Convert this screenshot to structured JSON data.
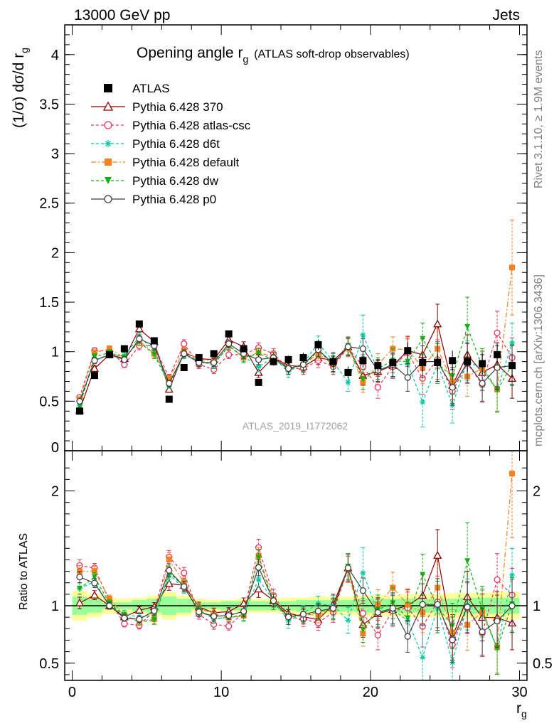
{
  "header": {
    "energy_label": "13000 GeV pp",
    "category_label": "Jets",
    "side_label_top": "Rivet 3.1.10, ≥ 1.9M events",
    "side_label_bottom": "mcplots.cern.ch [arXiv:1306.3436]",
    "analysis_id": "ATLAS_2019_I1772062"
  },
  "chart_data": {
    "type": "scatter",
    "title": "Opening angle r",
    "title_sub": "g",
    "title_suffix": "(ATLAS soft-drop observables)",
    "ylabel": "(1/σ) dσ/d r",
    "ylabel_sub": "g",
    "xlabel": "r",
    "xlabel_sub": "g",
    "ratio_ylabel": "Ratio to ATLAS",
    "xlim": [
      -0.5,
      30.5
    ],
    "ylim": [
      0,
      4.3
    ],
    "ratio_ylim": [
      0.35,
      2.35
    ],
    "x_ticks": [
      0,
      10,
      20,
      30
    ],
    "y_ticks": [
      0.5,
      1,
      1.5,
      2,
      2.5,
      3,
      3.5,
      4
    ],
    "y_tick_labels": [
      "0.5",
      "1",
      "1.5",
      "2",
      "2.5",
      "3",
      "3.5",
      "4"
    ],
    "y_zero_label": "0",
    "ratio_ticks": [
      0.5,
      1,
      2
    ],
    "ratio_tick_labels": [
      "0.5",
      "1",
      "2"
    ],
    "legend_position": "top-left",
    "x": [
      0.5,
      1.5,
      2.5,
      3.5,
      4.5,
      5.5,
      6.5,
      7.5,
      8.5,
      9.5,
      10.5,
      11.5,
      12.5,
      13.5,
      14.5,
      15.5,
      16.5,
      17.5,
      18.5,
      19.5,
      20.5,
      21.5,
      22.5,
      23.5,
      24.5,
      25.5,
      26.5,
      27.5,
      28.5,
      29.5
    ],
    "data": {
      "name": "ATLAS",
      "color": "#000000",
      "values": [
        0.4,
        0.76,
        0.97,
        1.03,
        1.28,
        1.11,
        0.52,
        0.84,
        0.94,
        0.98,
        1.18,
        1.03,
        0.69,
        0.9,
        0.92,
        0.94,
        1.07,
        0.9,
        0.79,
        0.91,
        0.86,
        0.89,
        1.01,
        0.89,
        0.89,
        0.91,
        0.9,
        0.88,
        0.97,
        0.86
      ],
      "errors": [
        0.02,
        0.03,
        0.03,
        0.03,
        0.03,
        0.03,
        0.02,
        0.03,
        0.03,
        0.03,
        0.03,
        0.03,
        0.03,
        0.04,
        0.04,
        0.05,
        0.05,
        0.06,
        0.06,
        0.07,
        0.07,
        0.08,
        0.08,
        0.09,
        0.09,
        0.1,
        0.1,
        0.11,
        0.11,
        0.12
      ],
      "band_inner": [
        0.08,
        0.06,
        0.03,
        0.03,
        0.05,
        0.06,
        0.08,
        0.06,
        0.03,
        0.03,
        0.04,
        0.04,
        0.04,
        0.04,
        0.04,
        0.05,
        0.05,
        0.05,
        0.05,
        0.06,
        0.06,
        0.06,
        0.06,
        0.06,
        0.06,
        0.06,
        0.07,
        0.07,
        0.07,
        0.07
      ],
      "band_outer": [
        0.13,
        0.1,
        0.07,
        0.06,
        0.07,
        0.09,
        0.12,
        0.09,
        0.06,
        0.05,
        0.05,
        0.06,
        0.06,
        0.06,
        0.07,
        0.07,
        0.08,
        0.08,
        0.08,
        0.09,
        0.09,
        0.09,
        0.1,
        0.1,
        0.1,
        0.11,
        0.11,
        0.11,
        0.12,
        0.12
      ]
    },
    "series": [
      {
        "name": "Pythia 6.428 370",
        "color": "#8b0000",
        "dash": "",
        "marker": "triangle-open",
        "values": [
          0.41,
          0.83,
          0.97,
          0.93,
          1.23,
          1.1,
          0.62,
          0.99,
          0.93,
          0.92,
          1.12,
          1.05,
          0.79,
          0.94,
          0.86,
          0.85,
          0.94,
          0.91,
          1.05,
          0.76,
          0.8,
          0.86,
          1.01,
          0.97,
          1.28,
          0.66,
          0.97,
          0.79,
          0.87,
          0.73
        ],
        "errors": [
          0.02,
          0.03,
          0.03,
          0.03,
          0.04,
          0.04,
          0.03,
          0.04,
          0.04,
          0.04,
          0.04,
          0.05,
          0.05,
          0.05,
          0.06,
          0.06,
          0.07,
          0.08,
          0.09,
          0.1,
          0.11,
          0.12,
          0.14,
          0.16,
          0.2,
          0.18,
          0.2,
          0.18,
          0.22,
          0.2
        ]
      },
      {
        "name": "Pythia 6.428 atlas-csc",
        "color": "#e8305a",
        "dash": "4,3",
        "marker": "circle-open",
        "values": [
          0.54,
          1.01,
          1.01,
          0.87,
          1.06,
          1.06,
          0.74,
          1.08,
          0.87,
          0.82,
          0.97,
          0.97,
          1.04,
          0.98,
          0.83,
          0.83,
          0.91,
          0.85,
          1.04,
          0.85,
          0.64,
          0.85,
          0.99,
          0.73,
          0.92,
          0.6,
          0.88,
          0.67,
          1.19,
          0.94
        ],
        "errors": [
          0.02,
          0.03,
          0.03,
          0.03,
          0.04,
          0.04,
          0.03,
          0.04,
          0.04,
          0.04,
          0.04,
          0.05,
          0.05,
          0.05,
          0.06,
          0.06,
          0.07,
          0.08,
          0.09,
          0.1,
          0.11,
          0.12,
          0.14,
          0.16,
          0.2,
          0.18,
          0.2,
          0.18,
          0.22,
          0.2
        ]
      },
      {
        "name": "Pythia 6.428 d6t",
        "color": "#00c8a0",
        "dash": "4,3",
        "marker": "star",
        "values": [
          0.46,
          0.92,
          0.97,
          0.96,
          1.15,
          1.02,
          0.66,
          0.97,
          0.91,
          0.87,
          1.06,
          0.95,
          0.85,
          0.94,
          0.8,
          0.88,
          1.09,
          0.9,
          0.69,
          1.17,
          0.81,
          0.86,
          0.88,
          0.49,
          0.88,
          0.46,
          0.91,
          0.82,
          0.61,
          1.09
        ],
        "errors": [
          0.02,
          0.03,
          0.03,
          0.03,
          0.04,
          0.04,
          0.03,
          0.04,
          0.04,
          0.04,
          0.04,
          0.05,
          0.05,
          0.05,
          0.06,
          0.06,
          0.07,
          0.08,
          0.09,
          0.2,
          0.11,
          0.12,
          0.14,
          0.25,
          0.2,
          0.18,
          0.2,
          0.18,
          0.22,
          0.2
        ]
      },
      {
        "name": "Pythia 6.428 default",
        "color": "#f58020",
        "dash": "7,3,2,3",
        "marker": "square",
        "values": [
          0.52,
          0.99,
          1.03,
          0.94,
          1.11,
          0.98,
          0.73,
          1.01,
          0.92,
          0.91,
          1.06,
          0.94,
          0.99,
          0.95,
          0.83,
          0.87,
          0.98,
          0.87,
          1.04,
          0.69,
          0.87,
          1.03,
          1.02,
          0.84,
          1.03,
          0.7,
          0.75,
          0.83,
          0.62,
          1.85
        ],
        "errors": [
          0.02,
          0.03,
          0.03,
          0.03,
          0.04,
          0.04,
          0.03,
          0.04,
          0.04,
          0.04,
          0.04,
          0.05,
          0.05,
          0.05,
          0.06,
          0.06,
          0.07,
          0.08,
          0.09,
          0.1,
          0.11,
          0.12,
          0.14,
          0.16,
          0.2,
          0.18,
          0.2,
          0.18,
          0.22,
          0.48
        ]
      },
      {
        "name": "Pythia 6.428 dw",
        "color": "#10b010",
        "dash": "4,3",
        "marker": "triangle-down",
        "values": [
          0.46,
          0.95,
          0.99,
          0.94,
          1.1,
          0.97,
          0.67,
          0.98,
          0.9,
          0.87,
          1.06,
          0.94,
          0.98,
          0.92,
          0.83,
          0.86,
          1.01,
          0.87,
          1.06,
          0.72,
          0.83,
          0.91,
          0.9,
          1.13,
          0.88,
          0.75,
          1.25,
          0.85,
          0.61,
          0.87
        ],
        "errors": [
          0.02,
          0.03,
          0.03,
          0.03,
          0.04,
          0.04,
          0.03,
          0.04,
          0.04,
          0.04,
          0.04,
          0.05,
          0.05,
          0.05,
          0.06,
          0.06,
          0.07,
          0.08,
          0.09,
          0.1,
          0.11,
          0.12,
          0.14,
          0.16,
          0.2,
          0.18,
          0.3,
          0.18,
          0.22,
          0.2
        ]
      },
      {
        "name": "Pythia 6.428 p0",
        "color": "#404040",
        "dash": "",
        "marker": "circle-open",
        "values": [
          0.5,
          0.91,
          0.97,
          0.92,
          1.13,
          1.06,
          0.68,
          0.98,
          0.89,
          0.89,
          1.08,
          0.98,
          0.92,
          0.94,
          0.83,
          0.87,
          1.02,
          0.88,
          1.05,
          1.03,
          0.81,
          0.87,
          0.74,
          0.9,
          0.9,
          0.64,
          0.89,
          0.68,
          0.84,
          0.86
        ],
        "errors": [
          0.02,
          0.03,
          0.03,
          0.03,
          0.04,
          0.04,
          0.03,
          0.04,
          0.04,
          0.04,
          0.04,
          0.05,
          0.05,
          0.05,
          0.06,
          0.06,
          0.07,
          0.08,
          0.09,
          0.1,
          0.11,
          0.12,
          0.14,
          0.16,
          0.2,
          0.18,
          0.2,
          0.18,
          0.22,
          0.2
        ]
      }
    ],
    "band_colors": {
      "outer": "#ffff99",
      "inner": "#99ff99"
    }
  }
}
